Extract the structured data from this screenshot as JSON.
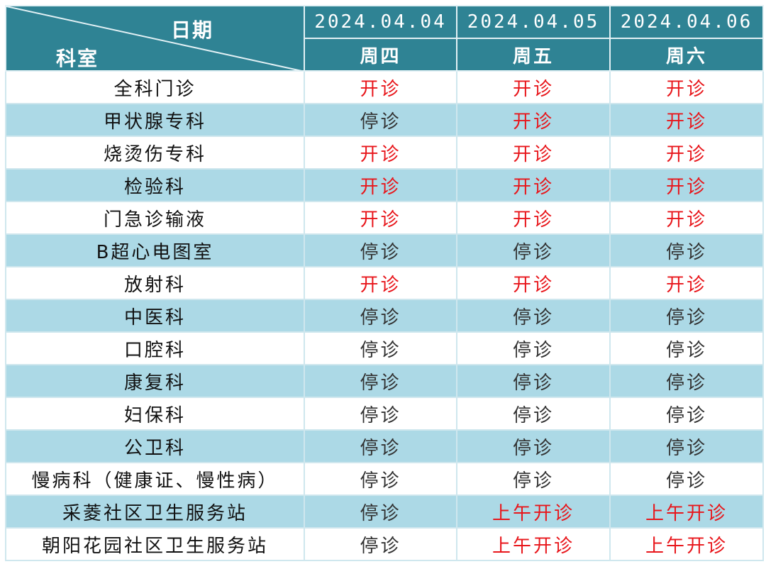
{
  "header": {
    "corner_top": "日期",
    "corner_bottom": "科室",
    "dates": [
      "2024.04.04",
      "2024.04.05",
      "2024.04.06"
    ],
    "weekdays": [
      "周四",
      "周五",
      "周六"
    ]
  },
  "colors": {
    "header_bg": "#2f8394",
    "stripe": "#acd9e6",
    "open_text": "#e8161b",
    "closed_text": "#333333"
  },
  "rows": [
    {
      "dept": "全科门诊",
      "status": [
        "开诊",
        "开诊",
        "开诊"
      ],
      "open": [
        true,
        true,
        true
      ]
    },
    {
      "dept": "甲状腺专科",
      "status": [
        "停诊",
        "开诊",
        "开诊"
      ],
      "open": [
        false,
        true,
        true
      ]
    },
    {
      "dept": "烧烫伤专科",
      "status": [
        "开诊",
        "开诊",
        "开诊"
      ],
      "open": [
        true,
        true,
        true
      ]
    },
    {
      "dept": "检验科",
      "status": [
        "开诊",
        "开诊",
        "开诊"
      ],
      "open": [
        true,
        true,
        true
      ]
    },
    {
      "dept": "门急诊输液",
      "status": [
        "开诊",
        "开诊",
        "开诊"
      ],
      "open": [
        true,
        true,
        true
      ]
    },
    {
      "dept": "B超心电图室",
      "status": [
        "停诊",
        "停诊",
        "停诊"
      ],
      "open": [
        false,
        false,
        false
      ]
    },
    {
      "dept": "放射科",
      "status": [
        "开诊",
        "开诊",
        "开诊"
      ],
      "open": [
        true,
        true,
        true
      ]
    },
    {
      "dept": "中医科",
      "status": [
        "停诊",
        "停诊",
        "停诊"
      ],
      "open": [
        false,
        false,
        false
      ]
    },
    {
      "dept": "口腔科",
      "status": [
        "停诊",
        "停诊",
        "停诊"
      ],
      "open": [
        false,
        false,
        false
      ]
    },
    {
      "dept": "康复科",
      "status": [
        "停诊",
        "停诊",
        "停诊"
      ],
      "open": [
        false,
        false,
        false
      ]
    },
    {
      "dept": "妇保科",
      "status": [
        "停诊",
        "停诊",
        "停诊"
      ],
      "open": [
        false,
        false,
        false
      ]
    },
    {
      "dept": "公卫科",
      "status": [
        "停诊",
        "停诊",
        "停诊"
      ],
      "open": [
        false,
        false,
        false
      ]
    },
    {
      "dept": "慢病科（健康证、慢性病）",
      "status": [
        "停诊",
        "停诊",
        "停诊"
      ],
      "open": [
        false,
        false,
        false
      ]
    },
    {
      "dept": "采菱社区卫生服务站",
      "status": [
        "停诊",
        "上午开诊",
        "上午开诊"
      ],
      "open": [
        false,
        true,
        true
      ]
    },
    {
      "dept": "朝阳花园社区卫生服务站",
      "status": [
        "停诊",
        "上午开诊",
        "上午开诊"
      ],
      "open": [
        false,
        true,
        true
      ]
    }
  ]
}
